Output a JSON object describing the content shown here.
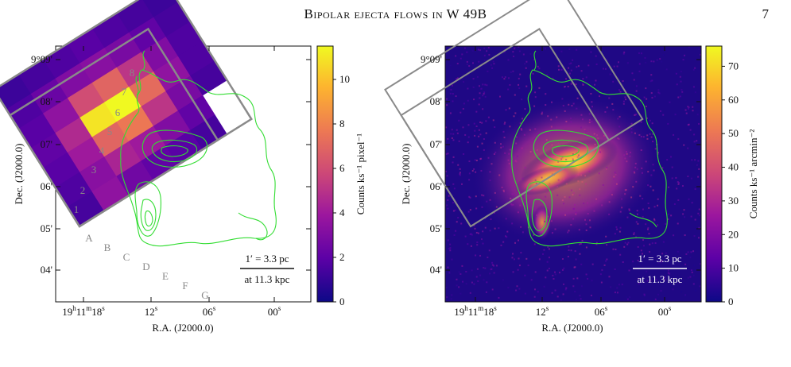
{
  "header": {
    "running_title": "Bipolar ejecta flows in W 49B",
    "page_number": "7"
  },
  "colors": {
    "contour": "#33dd33",
    "box": "#8a8a8a",
    "colormap": [
      "#0d0887",
      "#5c01a6",
      "#9c179e",
      "#cc4778",
      "#ed7953",
      "#fdb42f",
      "#f0f921"
    ]
  },
  "left_panel": {
    "ylabel": "Dec. (J2000.0)",
    "xlabel": "R.A. (J2000.0)",
    "yticks": [
      "9°09'",
      "08'",
      "07'",
      "06'",
      "05'",
      "04'"
    ],
    "xticks": [
      {
        "main": "19",
        "h": "h",
        "mid": "11",
        "m": "m",
        "tail": "18",
        "s": "s"
      },
      {
        "main": "12",
        "s": "s"
      },
      {
        "main": "06",
        "s": "s"
      },
      {
        "main": "00",
        "s": "s"
      }
    ],
    "colorbar_label": "Counts ks⁻¹ pixel⁻¹",
    "colorbar_ticks": [
      "0",
      "2",
      "4",
      "6",
      "8",
      "10"
    ],
    "colorbar_range": [
      0,
      11.5
    ],
    "row_labels": [
      "1",
      "2",
      "3",
      "4",
      "5",
      "6",
      "7",
      "8"
    ],
    "col_labels": [
      "A",
      "B",
      "C",
      "D",
      "E",
      "F",
      "G"
    ],
    "scalebar_top": "1′ = 3.3 pc",
    "scalebar_bottom": "at 11.3 kpc"
  },
  "right_panel": {
    "ylabel": "Dec. (J2000.0)",
    "xlabel": "R.A. (J2000.0)",
    "yticks": [
      "9°09'",
      "08'",
      "07'",
      "06'",
      "05'",
      "04'"
    ],
    "xticks": [
      {
        "main": "19",
        "h": "h",
        "mid": "11",
        "m": "m",
        "tail": "18",
        "s": "s"
      },
      {
        "main": "12",
        "s": "s"
      },
      {
        "main": "06",
        "s": "s"
      },
      {
        "main": "00",
        "s": "s"
      }
    ],
    "colorbar_label": "Counts ks⁻¹ arcmin⁻²",
    "colorbar_ticks": [
      "0",
      "10",
      "20",
      "30",
      "40",
      "50",
      "60",
      "70"
    ],
    "colorbar_range": [
      0,
      76
    ],
    "scalebar_top": "1′ = 3.3 pc",
    "scalebar_bottom": "at 11.3 kpc"
  }
}
